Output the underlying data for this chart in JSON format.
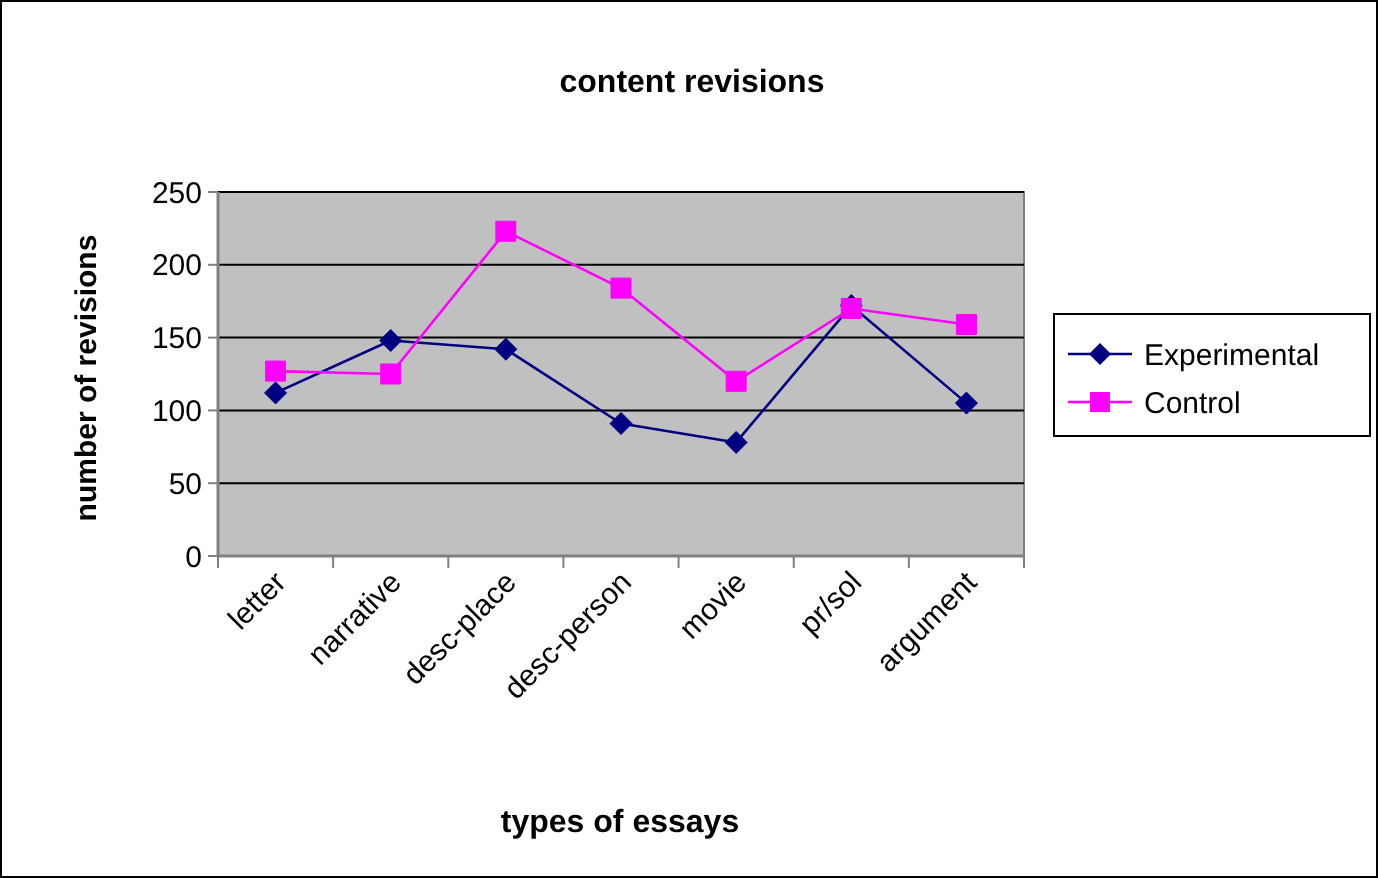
{
  "chart_data": {
    "type": "line",
    "title": "content revisions",
    "xlabel": "types of essays",
    "ylabel": "number of revisions",
    "categories": [
      "letter",
      "narrative",
      "desc-place",
      "desc-person",
      "movie",
      "pr/sol",
      "argument"
    ],
    "series": [
      {
        "name": "Experimental",
        "color": "#000080",
        "marker": "diamond",
        "values": [
          112,
          148,
          142,
          91,
          78,
          172,
          105
        ]
      },
      {
        "name": "Control",
        "color": "#ff00ff",
        "marker": "square",
        "values": [
          127,
          125,
          223,
          184,
          120,
          170,
          159
        ]
      }
    ],
    "ylim": [
      0,
      250
    ],
    "yticks": [
      0,
      50,
      100,
      150,
      200,
      250
    ],
    "grid": "y",
    "legend": "right",
    "line_style": "solid"
  }
}
